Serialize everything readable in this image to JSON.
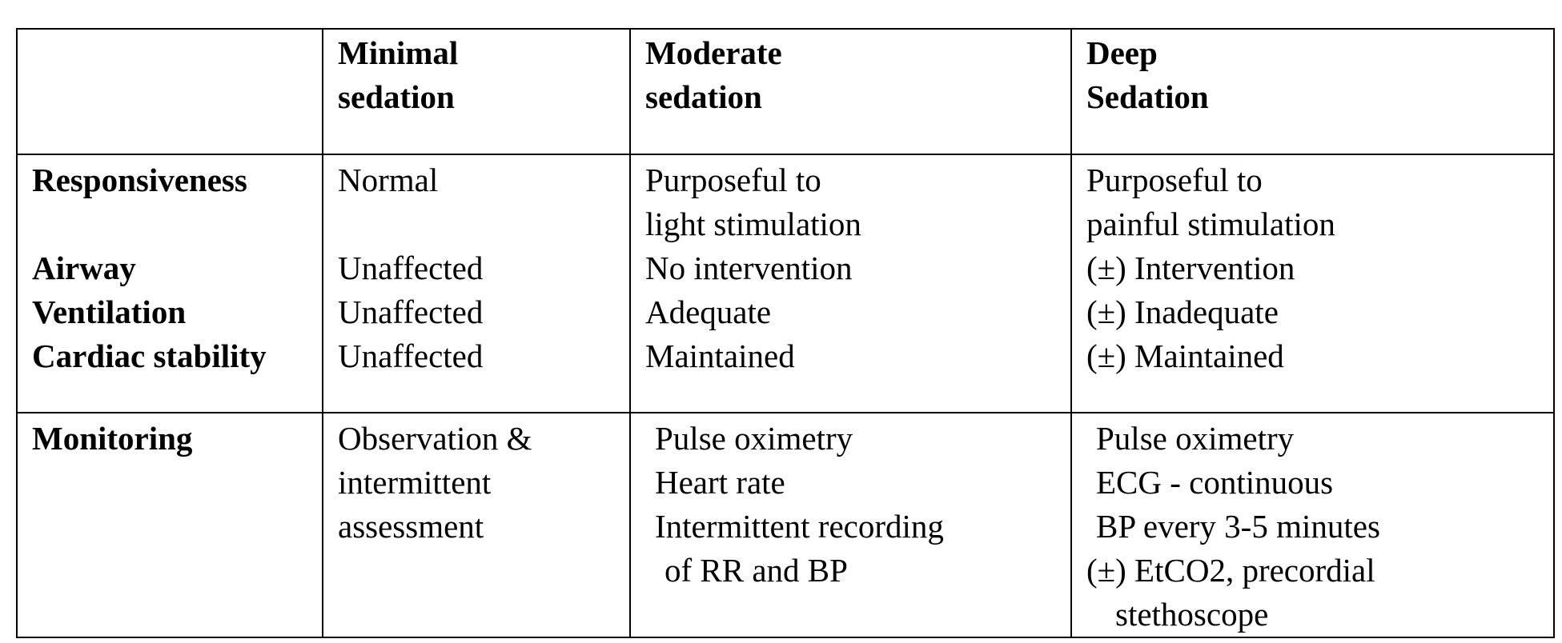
{
  "header": {
    "col0": "",
    "col1": [
      "Minimal",
      "sedation"
    ],
    "col2": [
      "Moderate",
      "sedation"
    ],
    "col3": [
      "Deep",
      "Sedation"
    ]
  },
  "clinical": {
    "labels": [
      "Responsiveness",
      "Airway",
      "Ventilation",
      "Cardiac stability"
    ],
    "minimal": {
      "responsiveness": "Normal",
      "airway": "Unaffected",
      "ventilation": "Unaffected",
      "cardiac": "Unaffected"
    },
    "moderate": {
      "responsiveness": [
        "Purposeful to",
        "light stimulation"
      ],
      "airway": "No intervention",
      "ventilation": "Adequate",
      "cardiac": "Maintained"
    },
    "deep": {
      "responsiveness": [
        "Purposeful to",
        "painful stimulation"
      ],
      "airway": "(±) Intervention",
      "ventilation": "(±) Inadequate",
      "cardiac": "(±) Maintained"
    }
  },
  "monitoring": {
    "label": "Monitoring",
    "minimal": [
      "Observation &",
      "intermittent",
      "assessment"
    ],
    "moderate": [
      "Pulse oximetry",
      "Heart rate",
      "Intermittent recording",
      "of RR and BP"
    ],
    "deep": [
      "Pulse oximetry",
      "ECG - continuous",
      "BP every 3-5 minutes",
      "(±) EtCO2, precordial",
      "stethoscope"
    ]
  }
}
